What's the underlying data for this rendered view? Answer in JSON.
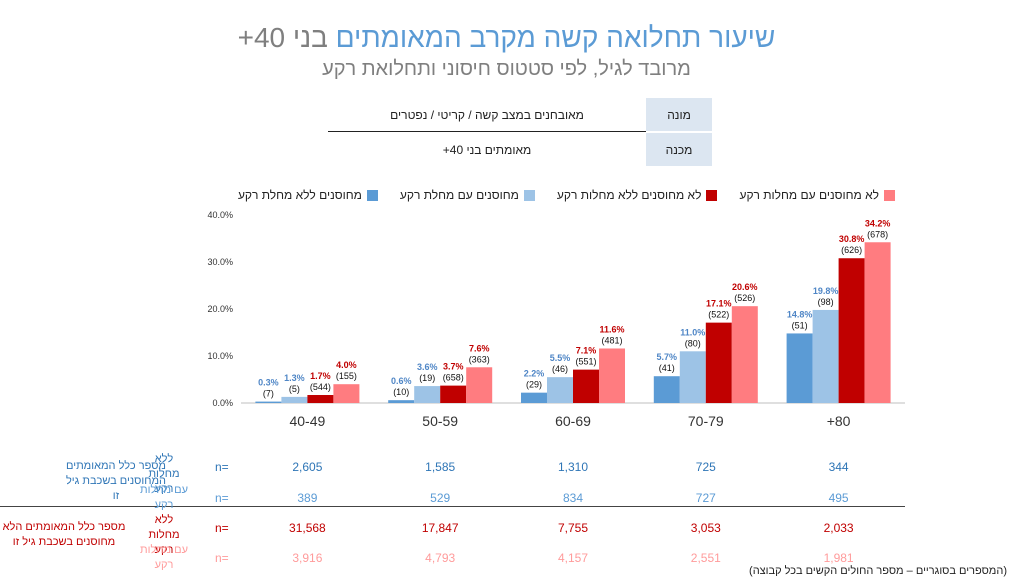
{
  "title": {
    "main": "שיעור תחלואה קשה מקרב המאומתים",
    "rest": "בני 40+"
  },
  "subtitle": "מרובד לגיל, לפי סטטוס חיסוני ותחלואת רקע",
  "definition": {
    "numerator_label": "מונה",
    "numerator_value": "מאובחנים במצב קשה / קריטי / נפטרים",
    "denominator_label": "מכנה",
    "denominator_value": "מאומתים בני 40+"
  },
  "chart_data": {
    "type": "bar",
    "categories": [
      "40-49",
      "50-59",
      "60-69",
      "70-79",
      "+80"
    ],
    "series": [
      {
        "name": "מחוסנים ללא מחלת רקע",
        "color": "#5b9bd5",
        "label_color": "#4f86c6",
        "values": [
          0.3,
          0.6,
          2.2,
          5.7,
          14.8
        ],
        "value_labels": [
          "0.3%",
          "0.6%",
          "2.2%",
          "5.7%",
          "14.8%"
        ],
        "counts": [
          "(7)",
          "(10)",
          "(29)",
          "(41)",
          "(51)"
        ]
      },
      {
        "name": "מחוסנים עם מחלת רקע",
        "color": "#9dc3e6",
        "label_color": "#4f86c6",
        "values": [
          1.3,
          3.6,
          5.5,
          11.0,
          19.8
        ],
        "value_labels": [
          "1.3%",
          "3.6%",
          "5.5%",
          "11.0%",
          "19.8%"
        ],
        "counts": [
          "(5)",
          "(19)",
          "(46)",
          "(80)",
          "(98)"
        ]
      },
      {
        "name": "לא מחוסנים ללא מחלות רקע",
        "color": "#c00000",
        "label_color": "#c00000",
        "values": [
          1.7,
          3.7,
          7.1,
          17.1,
          30.8
        ],
        "value_labels": [
          "1.7%",
          "3.7%",
          "7.1%",
          "17.1%",
          "30.8%"
        ],
        "counts": [
          "(544)",
          "(658)",
          "(551)",
          "(522)",
          "(626)"
        ]
      },
      {
        "name": "לא מחוסנים עם מחלות רקע",
        "color": "#ff7c80",
        "label_color": "#c00000",
        "values": [
          4.0,
          7.6,
          11.6,
          20.6,
          34.2
        ],
        "value_labels": [
          "4.0%",
          "7.6%",
          "11.6%",
          "20.6%",
          "34.2%"
        ],
        "counts": [
          "(155)",
          "(363)",
          "(481)",
          "(526)",
          "(678)"
        ]
      }
    ],
    "ylim": [
      0,
      40
    ],
    "yticks": [
      0,
      10,
      20,
      30,
      40
    ],
    "ytick_labels": [
      "0.0%",
      "10.0%",
      "20.0%",
      "30.0%",
      "40.0%"
    ],
    "legend_position": "top"
  },
  "table": {
    "n_label": "n=",
    "vaccinated_group_label": "מספר כלל המאומתים המחוסנים בשכבת גיל זו",
    "unvaccinated_group_label": "מספר כלל המאומתים הלא מחוסנים בשכבת גיל זו",
    "rows": [
      {
        "label": "ללא מחלות רקע",
        "color": "#2e75b6",
        "values": [
          "2,605",
          "1,585",
          "1,310",
          "725",
          "344"
        ]
      },
      {
        "label": "עם מחלות רקע",
        "color": "#5b9bd5",
        "values": [
          "389",
          "529",
          "834",
          "727",
          "495"
        ]
      },
      {
        "label": "ללא מחלות רקע",
        "color": "#c00000",
        "values": [
          "31,568",
          "17,847",
          "7,755",
          "3,053",
          "2,033"
        ]
      },
      {
        "label": "עם מחלות רקע",
        "color": "#ff9b9b",
        "values": [
          "3,916",
          "4,793",
          "4,157",
          "2,551",
          "1,981"
        ]
      }
    ]
  },
  "footnote": "(המספרים בסוגריים – מספר החולים הקשים בכל קבוצה)"
}
